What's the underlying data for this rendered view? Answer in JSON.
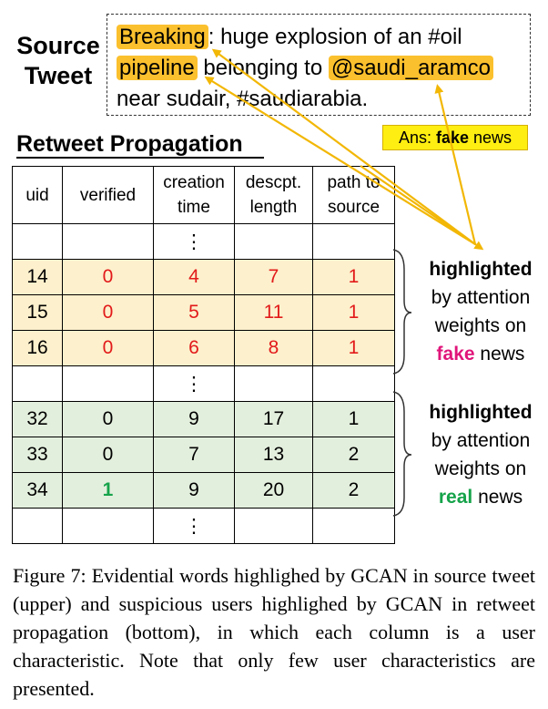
{
  "source_label": [
    "Source",
    "Tweet"
  ],
  "tweet": {
    "line1_hl": "Breaking",
    "line1_rest": ": huge explosion of an #oil",
    "line2_hl1": "pipeline",
    "line2_mid": " belonging to ",
    "line2_hl2": "@saudi_aramco",
    "line3": "near sudair, #saudiarabia."
  },
  "answer": {
    "prefix": "Ans: ",
    "word": "fake",
    "suffix": " news"
  },
  "retweet_title": "Retweet Propagation",
  "table": {
    "headers": [
      "uid",
      "verified",
      "creation time",
      "descpt. length",
      "path to source"
    ],
    "header_lines": [
      [
        "uid"
      ],
      [
        "verified"
      ],
      [
        "creation",
        "time"
      ],
      [
        "descpt.",
        "length"
      ],
      [
        "path to",
        "source"
      ]
    ],
    "dots": "⋮",
    "fake_rows": [
      [
        "14",
        "0",
        "4",
        "7",
        "1"
      ],
      [
        "15",
        "0",
        "5",
        "11",
        "1"
      ],
      [
        "16",
        "0",
        "6",
        "8",
        "1"
      ]
    ],
    "real_rows": [
      [
        "32",
        "0",
        "9",
        "17",
        "1"
      ],
      [
        "33",
        "0",
        "7",
        "13",
        "2"
      ],
      [
        "34",
        "1",
        "9",
        "20",
        "2"
      ]
    ]
  },
  "note_fake": {
    "bold": "highlighted",
    "line2": "by attention",
    "line3": "weights on",
    "word": "fake",
    "tail": " news"
  },
  "note_real": {
    "bold": "highlighted",
    "line2": "by attention",
    "line3": "weights on",
    "word": "real",
    "tail": " news"
  },
  "caption": "Figure 7: Evidential words highlighed by GCAN in source tweet (upper) and suspicious users highlighed by GCAN in retweet propagation (bottom), in which each column is a user characteristic. Note that only few user characteristics are presented.",
  "colors": {
    "highlight": "#fbc02d",
    "answer_bg": "#ffee11",
    "arrow": "#f2b705",
    "fake_row": "#fdf0cc",
    "real_row": "#e3efdd",
    "red": "#e21a1a",
    "green": "#16a34a",
    "fake_word": "#e0157a"
  }
}
